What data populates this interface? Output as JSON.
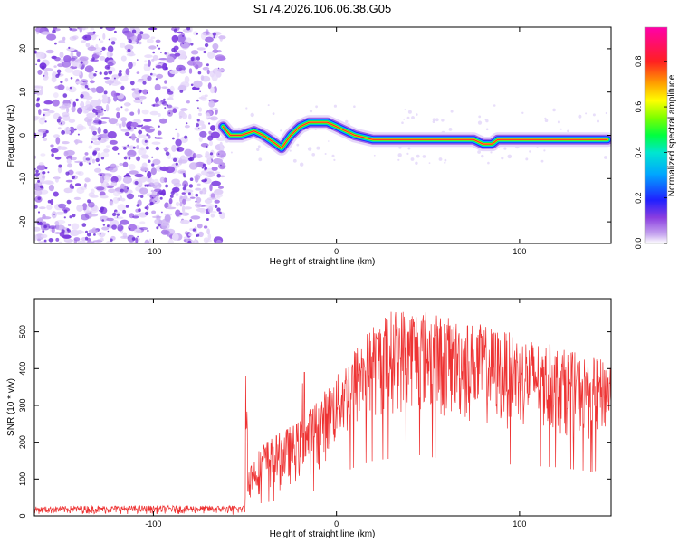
{
  "title": "S174.2026.106.06.38.G05",
  "colors": {
    "snr_line": "#ee3333",
    "axes": "#000000"
  },
  "chart_data": [
    {
      "type": "heatmap",
      "name": "spectrogram",
      "title": "S174.2026.106.06.38.G05",
      "xlabel": "Height of straight line (km)",
      "ylabel": "Frequency (Hz)",
      "xlim": [
        -165,
        150
      ],
      "ylim": [
        -25,
        25
      ],
      "x_ticks": [
        -100,
        0,
        100
      ],
      "y_ticks": [
        -20,
        -10,
        0,
        10,
        20
      ],
      "noise_region_x": [
        -165,
        -62
      ],
      "frequency_trace": {
        "x": [
          -62,
          -58,
          -52,
          -45,
          -40,
          -33,
          -30,
          -25,
          -20,
          -15,
          -10,
          -5,
          0,
          5,
          10,
          20,
          40,
          60,
          75,
          80,
          85,
          88,
          95,
          110,
          130,
          148
        ],
        "y": [
          2,
          0,
          0,
          1,
          0,
          -2,
          -3,
          0,
          2,
          3,
          3,
          3,
          2,
          1,
          0,
          -1,
          -1,
          -1,
          -1,
          -2,
          -2,
          -1,
          -1,
          -1,
          -1,
          -1
        ]
      },
      "colorbar": {
        "label": "Normalized spectral amplitude",
        "range": [
          0,
          0.95
        ],
        "ticks": [
          "0.0",
          "0.2",
          "0.4",
          "0.6",
          "0.8"
        ],
        "tick_values": [
          0,
          0.2,
          0.4,
          0.6,
          0.8
        ]
      }
    },
    {
      "type": "line",
      "name": "snr",
      "xlabel": "Height of straight line (km)",
      "ylabel": "SNR (10 * v/v)",
      "xlim": [
        -165,
        150
      ],
      "ylim": [
        0,
        590
      ],
      "x_ticks": [
        -100,
        0,
        100
      ],
      "y_ticks": [
        0,
        100,
        200,
        300,
        400,
        500
      ],
      "envelope": {
        "x": [
          -165,
          -140,
          -100,
          -60,
          -50,
          -49,
          -48,
          -45,
          -40,
          -30,
          -20,
          -10,
          0,
          10,
          20,
          30,
          40,
          50,
          60,
          80,
          100,
          120,
          140,
          150
        ],
        "low": [
          5,
          5,
          5,
          5,
          5,
          70,
          40,
          50,
          60,
          70,
          90,
          120,
          180,
          220,
          250,
          260,
          280,
          270,
          250,
          240,
          230,
          220,
          200,
          220
        ],
        "high": [
          25,
          28,
          28,
          28,
          28,
          380,
          140,
          160,
          200,
          230,
          260,
          320,
          380,
          460,
          520,
          560,
          570,
          560,
          540,
          520,
          490,
          460,
          430,
          420
        ]
      },
      "spikes": [
        {
          "x": -49.5,
          "y": 380
        },
        {
          "x": -17.5,
          "y": 390
        },
        {
          "x": -18.5,
          "y": 360
        },
        {
          "x": -18.0,
          "y": 225
        },
        {
          "x": 114,
          "y": 435
        },
        {
          "x": 105,
          "y": 320
        }
      ]
    }
  ]
}
